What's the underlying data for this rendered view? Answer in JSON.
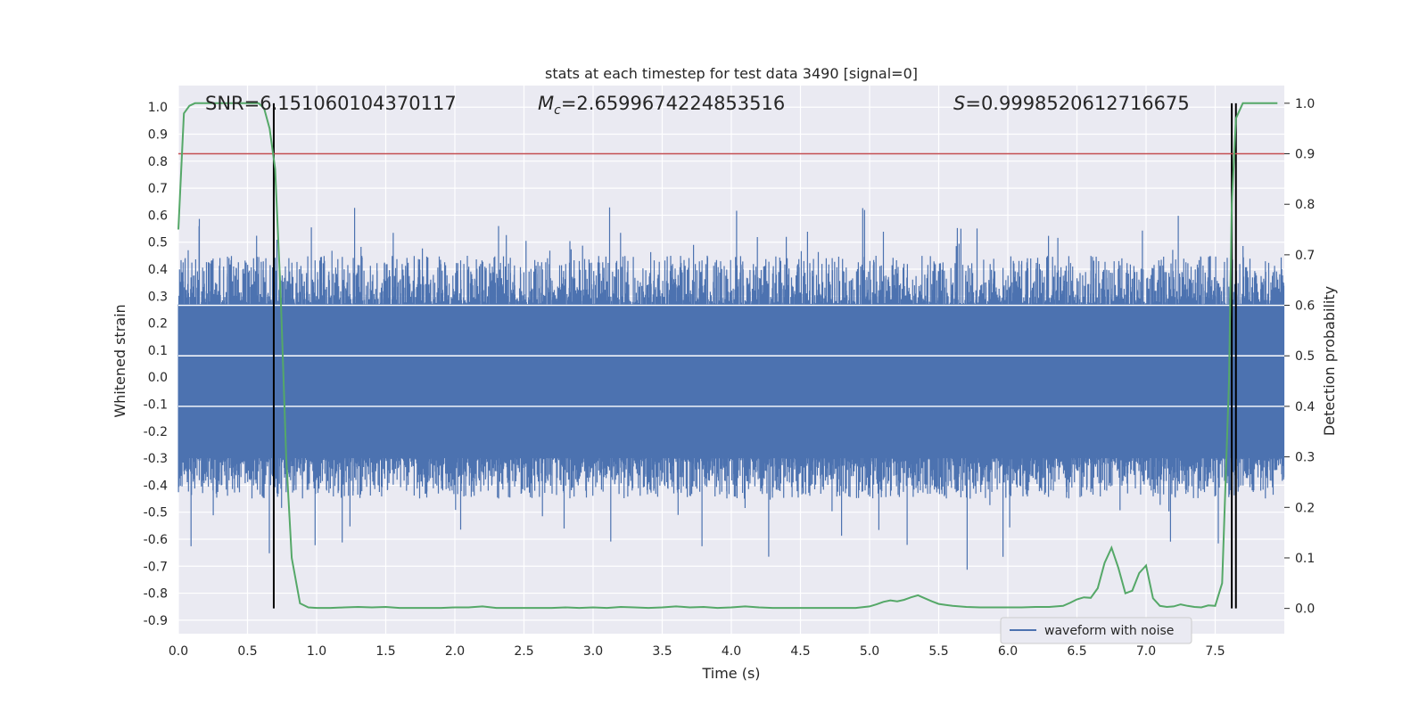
{
  "chart_data": {
    "type": "line",
    "title": "stats at each timestep for test data 3490 [signal=0]",
    "xlabel": "Time (s)",
    "ylabel": "Whitened strain",
    "y2label": "Detection probability",
    "xlim": [
      0.0,
      8.0
    ],
    "ylim": [
      -0.95,
      1.08
    ],
    "y2lim": [
      -0.05,
      1.035
    ],
    "x_ticks": [
      "0.0",
      "0.5",
      "1.0",
      "1.5",
      "2.0",
      "2.5",
      "3.0",
      "3.5",
      "4.0",
      "4.5",
      "5.0",
      "5.5",
      "6.0",
      "6.5",
      "7.0",
      "7.5"
    ],
    "y_ticks": [
      "1.0",
      "0.9",
      "0.8",
      "0.7",
      "0.6",
      "0.5",
      "0.4",
      "0.3",
      "0.2",
      "0.1",
      "0.0",
      "-0.1",
      "-0.2",
      "-0.3",
      "-0.4",
      "-0.5",
      "-0.6",
      "-0.7",
      "-0.8",
      "-0.9"
    ],
    "y2_ticks": [
      "1.0",
      "0.9",
      "0.8",
      "0.7",
      "0.6",
      "0.5",
      "0.4",
      "0.3",
      "0.2",
      "0.1",
      "0.0"
    ],
    "grid": true,
    "legend_position": "lower-right",
    "annotations": {
      "snr": "SNR=6.151060104370117",
      "mc_symbol": "M",
      "mc_sub": "c",
      "mc_value": "=2.6599674224853516",
      "s_symbol": "S",
      "s_value": "=0.9998520612716675"
    },
    "threshold": {
      "y2": 0.9,
      "color": "#c44e52"
    },
    "vertical_lines": [
      0.69,
      7.62,
      7.65
    ],
    "vertical_line_color": "#000000",
    "waveform": {
      "name": "waveform with noise",
      "color": "#4c72b0",
      "core_band": [
        -0.3,
        0.27
      ],
      "typical_peak": [
        -0.45,
        0.45
      ],
      "max_peak": [
        -0.72,
        0.64
      ]
    },
    "probability": {
      "color": "#55a868",
      "x": [
        0.0,
        0.04,
        0.08,
        0.12,
        0.2,
        0.3,
        0.4,
        0.5,
        0.58,
        0.62,
        0.66,
        0.7,
        0.74,
        0.78,
        0.82,
        0.88,
        0.94,
        1.0,
        1.1,
        1.2,
        1.3,
        1.4,
        1.5,
        1.6,
        1.7,
        1.8,
        1.9,
        2.0,
        2.1,
        2.2,
        2.3,
        2.4,
        2.5,
        2.6,
        2.7,
        2.8,
        2.9,
        3.0,
        3.1,
        3.2,
        3.3,
        3.4,
        3.5,
        3.6,
        3.7,
        3.8,
        3.9,
        4.0,
        4.1,
        4.2,
        4.3,
        4.4,
        4.5,
        4.6,
        4.7,
        4.8,
        4.9,
        5.0,
        5.05,
        5.1,
        5.15,
        5.2,
        5.25,
        5.3,
        5.35,
        5.4,
        5.45,
        5.5,
        5.55,
        5.6,
        5.7,
        5.8,
        5.9,
        6.0,
        6.1,
        6.2,
        6.3,
        6.4,
        6.45,
        6.5,
        6.55,
        6.6,
        6.65,
        6.7,
        6.75,
        6.8,
        6.85,
        6.9,
        6.95,
        7.0,
        7.05,
        7.1,
        7.15,
        7.2,
        7.25,
        7.3,
        7.35,
        7.4,
        7.45,
        7.5,
        7.55,
        7.6,
        7.62,
        7.65,
        7.7,
        7.75,
        7.8,
        7.85,
        7.9,
        7.95
      ],
      "y": [
        0.75,
        0.98,
        0.995,
        1.0,
        1.0,
        1.0,
        1.0,
        1.0,
        1.0,
        0.99,
        0.95,
        0.87,
        0.62,
        0.3,
        0.1,
        0.01,
        0.002,
        0.001,
        0.001,
        0.002,
        0.003,
        0.002,
        0.003,
        0.001,
        0.001,
        0.001,
        0.001,
        0.002,
        0.002,
        0.004,
        0.001,
        0.001,
        0.001,
        0.001,
        0.001,
        0.002,
        0.001,
        0.002,
        0.001,
        0.003,
        0.002,
        0.001,
        0.002,
        0.004,
        0.002,
        0.003,
        0.001,
        0.002,
        0.004,
        0.002,
        0.001,
        0.001,
        0.001,
        0.001,
        0.001,
        0.001,
        0.001,
        0.004,
        0.008,
        0.013,
        0.016,
        0.014,
        0.017,
        0.022,
        0.026,
        0.02,
        0.014,
        0.009,
        0.007,
        0.005,
        0.003,
        0.002,
        0.002,
        0.002,
        0.002,
        0.003,
        0.003,
        0.005,
        0.011,
        0.018,
        0.022,
        0.021,
        0.04,
        0.09,
        0.12,
        0.08,
        0.03,
        0.035,
        0.07,
        0.085,
        0.02,
        0.005,
        0.003,
        0.004,
        0.008,
        0.005,
        0.003,
        0.002,
        0.006,
        0.005,
        0.05,
        0.45,
        0.8,
        0.97,
        1.0,
        1.0,
        1.0,
        1.0,
        1.0,
        1.0
      ]
    }
  }
}
